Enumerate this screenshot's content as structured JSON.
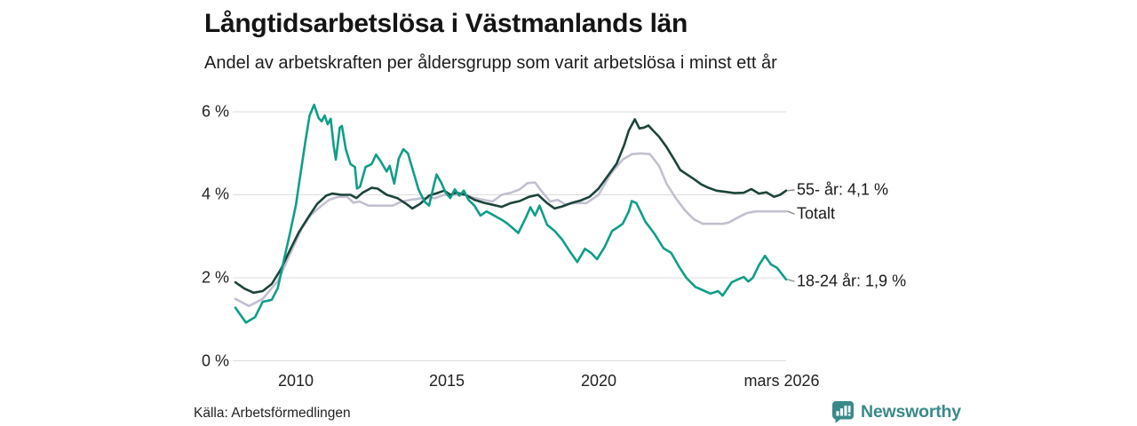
{
  "header": {
    "title": "Långtidsarbetslösa i Västmanlands län",
    "subtitle": "Andel av arbetskraften per åldersgrupp som varit arbetslösa i minst ett år"
  },
  "footer": {
    "source": "Källa: Arbetsförmedlingen",
    "brand": "Newsworthy"
  },
  "chart_data": {
    "type": "line",
    "title": "Långtidsarbetslösa i Västmanlands län",
    "subtitle": "Andel av arbetskraften per åldersgrupp som varit arbetslösa i minst ett år",
    "xlabel": "",
    "ylabel": "",
    "x_range": [
      2008.0,
      2026.2
    ],
    "ylim": [
      0,
      6.4
    ],
    "grid": true,
    "legend_position": "right-end-labels",
    "y_ticks": [
      {
        "label": "6 %",
        "value": 6
      },
      {
        "label": "4 %",
        "value": 4
      },
      {
        "label": "2 %",
        "value": 2
      },
      {
        "label": "0 %",
        "value": 0
      }
    ],
    "x_ticks": [
      {
        "label": "2010",
        "value": 2010
      },
      {
        "label": "2015",
        "value": 2015
      },
      {
        "label": "2020",
        "value": 2020
      },
      {
        "label": "mars 2026",
        "value": 2026.17
      }
    ],
    "colors": {
      "grid": "#dcdcdc",
      "connector": "#8a8a8a",
      "background": "#ffffff",
      "brand_teal": "#3a8989"
    },
    "series": [
      {
        "name": "Totalt",
        "end_label": "Totalt",
        "end_value_text": "",
        "color": "#c2c0d0",
        "points": [
          [
            2008.0,
            1.49
          ],
          [
            2008.45,
            1.32
          ],
          [
            2008.9,
            1.49
          ],
          [
            2009.4,
            1.92
          ],
          [
            2009.8,
            2.56
          ],
          [
            2010.2,
            3.2
          ],
          [
            2010.5,
            3.52
          ],
          [
            2010.8,
            3.71
          ],
          [
            2011.1,
            3.88
          ],
          [
            2011.4,
            3.95
          ],
          [
            2011.7,
            3.95
          ],
          [
            2011.9,
            3.81
          ],
          [
            2012.1,
            3.84
          ],
          [
            2012.4,
            3.74
          ],
          [
            2012.8,
            3.74
          ],
          [
            2013.2,
            3.74
          ],
          [
            2013.5,
            3.84
          ],
          [
            2013.8,
            3.88
          ],
          [
            2014.2,
            3.92
          ],
          [
            2014.6,
            3.92
          ],
          [
            2014.9,
            4.0
          ],
          [
            2015.3,
            4.0
          ],
          [
            2015.6,
            4.0
          ],
          [
            2015.9,
            3.92
          ],
          [
            2016.2,
            3.88
          ],
          [
            2016.5,
            3.84
          ],
          [
            2016.8,
            4.0
          ],
          [
            2017.1,
            4.05
          ],
          [
            2017.4,
            4.13
          ],
          [
            2017.65,
            4.28
          ],
          [
            2017.9,
            4.3
          ],
          [
            2018.1,
            4.1
          ],
          [
            2018.4,
            3.84
          ],
          [
            2018.65,
            3.88
          ],
          [
            2018.9,
            3.77
          ],
          [
            2019.2,
            3.8
          ],
          [
            2019.6,
            3.8
          ],
          [
            2020.0,
            4.0
          ],
          [
            2020.4,
            4.5
          ],
          [
            2020.8,
            4.85
          ],
          [
            2021.1,
            4.98
          ],
          [
            2021.4,
            5.0
          ],
          [
            2021.7,
            4.98
          ],
          [
            2022.0,
            4.7
          ],
          [
            2022.25,
            4.27
          ],
          [
            2022.55,
            3.92
          ],
          [
            2022.85,
            3.63
          ],
          [
            2023.15,
            3.41
          ],
          [
            2023.45,
            3.3
          ],
          [
            2023.8,
            3.3
          ],
          [
            2024.1,
            3.3
          ],
          [
            2024.3,
            3.33
          ],
          [
            2024.6,
            3.45
          ],
          [
            2024.9,
            3.56
          ],
          [
            2025.2,
            3.6
          ],
          [
            2025.6,
            3.6
          ],
          [
            2026.0,
            3.6
          ],
          [
            2026.2,
            3.6
          ]
        ]
      },
      {
        "name": "55- år",
        "end_label": "55- år: 4,1 %",
        "end_value_text": "4,1 %",
        "color": "#1c443a",
        "points": [
          [
            2008.0,
            1.89
          ],
          [
            2008.3,
            1.74
          ],
          [
            2008.6,
            1.64
          ],
          [
            2008.9,
            1.68
          ],
          [
            2009.2,
            1.85
          ],
          [
            2009.5,
            2.2
          ],
          [
            2009.8,
            2.66
          ],
          [
            2010.1,
            3.1
          ],
          [
            2010.4,
            3.45
          ],
          [
            2010.7,
            3.78
          ],
          [
            2011.0,
            3.98
          ],
          [
            2011.2,
            4.03
          ],
          [
            2011.5,
            4.0
          ],
          [
            2011.8,
            4.0
          ],
          [
            2012.0,
            3.92
          ],
          [
            2012.2,
            4.05
          ],
          [
            2012.5,
            4.17
          ],
          [
            2012.7,
            4.15
          ],
          [
            2013.0,
            4.0
          ],
          [
            2013.35,
            3.92
          ],
          [
            2013.65,
            3.78
          ],
          [
            2013.85,
            3.67
          ],
          [
            2014.1,
            3.78
          ],
          [
            2014.4,
            3.98
          ],
          [
            2014.7,
            4.05
          ],
          [
            2014.9,
            4.1
          ],
          [
            2015.1,
            4.0
          ],
          [
            2015.3,
            4.05
          ],
          [
            2015.6,
            4.0
          ],
          [
            2015.9,
            3.88
          ],
          [
            2016.2,
            3.81
          ],
          [
            2016.5,
            3.76
          ],
          [
            2016.8,
            3.71
          ],
          [
            2017.1,
            3.8
          ],
          [
            2017.4,
            3.85
          ],
          [
            2017.7,
            3.95
          ],
          [
            2018.0,
            4.0
          ],
          [
            2018.3,
            3.8
          ],
          [
            2018.55,
            3.67
          ],
          [
            2018.8,
            3.72
          ],
          [
            2019.1,
            3.8
          ],
          [
            2019.4,
            3.86
          ],
          [
            2019.7,
            3.95
          ],
          [
            2020.0,
            4.15
          ],
          [
            2020.3,
            4.45
          ],
          [
            2020.6,
            4.75
          ],
          [
            2020.85,
            5.2
          ],
          [
            2021.0,
            5.55
          ],
          [
            2021.2,
            5.82
          ],
          [
            2021.35,
            5.6
          ],
          [
            2021.5,
            5.62
          ],
          [
            2021.65,
            5.67
          ],
          [
            2021.8,
            5.55
          ],
          [
            2022.0,
            5.4
          ],
          [
            2022.25,
            5.15
          ],
          [
            2022.5,
            4.85
          ],
          [
            2022.7,
            4.6
          ],
          [
            2022.9,
            4.5
          ],
          [
            2023.15,
            4.38
          ],
          [
            2023.4,
            4.25
          ],
          [
            2023.6,
            4.18
          ],
          [
            2023.9,
            4.1
          ],
          [
            2024.2,
            4.07
          ],
          [
            2024.5,
            4.04
          ],
          [
            2024.8,
            4.05
          ],
          [
            2025.05,
            4.14
          ],
          [
            2025.3,
            4.03
          ],
          [
            2025.55,
            4.06
          ],
          [
            2025.8,
            3.95
          ],
          [
            2026.0,
            4.0
          ],
          [
            2026.2,
            4.1
          ]
        ]
      },
      {
        "name": "18-24 år",
        "end_label": "18-24 år: 1,9 %",
        "end_value_text": "1,9 %",
        "color": "#0f9e88",
        "points": [
          [
            2008.0,
            1.28
          ],
          [
            2008.35,
            0.92
          ],
          [
            2008.65,
            1.05
          ],
          [
            2008.9,
            1.42
          ],
          [
            2009.2,
            1.47
          ],
          [
            2009.4,
            1.75
          ],
          [
            2009.6,
            2.42
          ],
          [
            2009.8,
            3.06
          ],
          [
            2010.0,
            3.75
          ],
          [
            2010.15,
            4.49
          ],
          [
            2010.3,
            5.23
          ],
          [
            2010.45,
            5.91
          ],
          [
            2010.6,
            6.17
          ],
          [
            2010.75,
            5.85
          ],
          [
            2010.85,
            5.77
          ],
          [
            2010.95,
            5.91
          ],
          [
            2011.05,
            5.7
          ],
          [
            2011.15,
            5.83
          ],
          [
            2011.25,
            5.17
          ],
          [
            2011.32,
            4.85
          ],
          [
            2011.45,
            5.62
          ],
          [
            2011.52,
            5.66
          ],
          [
            2011.65,
            5.1
          ],
          [
            2011.8,
            4.74
          ],
          [
            2011.95,
            4.67
          ],
          [
            2012.02,
            4.15
          ],
          [
            2012.12,
            4.2
          ],
          [
            2012.3,
            4.67
          ],
          [
            2012.5,
            4.74
          ],
          [
            2012.65,
            4.97
          ],
          [
            2012.8,
            4.81
          ],
          [
            2013.0,
            4.56
          ],
          [
            2013.1,
            4.7
          ],
          [
            2013.25,
            4.27
          ],
          [
            2013.4,
            4.88
          ],
          [
            2013.55,
            5.1
          ],
          [
            2013.7,
            5.0
          ],
          [
            2013.85,
            4.63
          ],
          [
            2014.05,
            4.13
          ],
          [
            2014.25,
            3.84
          ],
          [
            2014.4,
            3.74
          ],
          [
            2014.55,
            4.2
          ],
          [
            2014.65,
            4.49
          ],
          [
            2014.8,
            4.3
          ],
          [
            2014.95,
            4.05
          ],
          [
            2015.1,
            3.92
          ],
          [
            2015.25,
            4.13
          ],
          [
            2015.4,
            3.98
          ],
          [
            2015.55,
            4.1
          ],
          [
            2015.7,
            3.88
          ],
          [
            2015.9,
            3.74
          ],
          [
            2016.1,
            3.5
          ],
          [
            2016.3,
            3.6
          ],
          [
            2016.55,
            3.5
          ],
          [
            2016.8,
            3.4
          ],
          [
            2017.0,
            3.3
          ],
          [
            2017.35,
            3.08
          ],
          [
            2017.6,
            3.45
          ],
          [
            2017.75,
            3.7
          ],
          [
            2017.9,
            3.5
          ],
          [
            2018.05,
            3.74
          ],
          [
            2018.3,
            3.28
          ],
          [
            2018.55,
            3.13
          ],
          [
            2018.8,
            2.92
          ],
          [
            2019.05,
            2.64
          ],
          [
            2019.3,
            2.38
          ],
          [
            2019.55,
            2.7
          ],
          [
            2019.75,
            2.6
          ],
          [
            2019.95,
            2.45
          ],
          [
            2020.2,
            2.74
          ],
          [
            2020.45,
            3.13
          ],
          [
            2020.6,
            3.2
          ],
          [
            2020.8,
            3.3
          ],
          [
            2021.0,
            3.6
          ],
          [
            2021.1,
            3.85
          ],
          [
            2021.25,
            3.8
          ],
          [
            2021.55,
            3.35
          ],
          [
            2021.85,
            3.06
          ],
          [
            2022.15,
            2.71
          ],
          [
            2022.4,
            2.6
          ],
          [
            2022.65,
            2.28
          ],
          [
            2022.9,
            2.0
          ],
          [
            2023.2,
            1.78
          ],
          [
            2023.45,
            1.7
          ],
          [
            2023.7,
            1.62
          ],
          [
            2023.95,
            1.68
          ],
          [
            2024.1,
            1.57
          ],
          [
            2024.4,
            1.89
          ],
          [
            2024.6,
            1.96
          ],
          [
            2024.8,
            2.02
          ],
          [
            2024.95,
            1.91
          ],
          [
            2025.1,
            2.0
          ],
          [
            2025.3,
            2.3
          ],
          [
            2025.5,
            2.53
          ],
          [
            2025.7,
            2.32
          ],
          [
            2025.9,
            2.24
          ],
          [
            2026.05,
            2.1
          ],
          [
            2026.2,
            1.96
          ]
        ]
      }
    ]
  }
}
